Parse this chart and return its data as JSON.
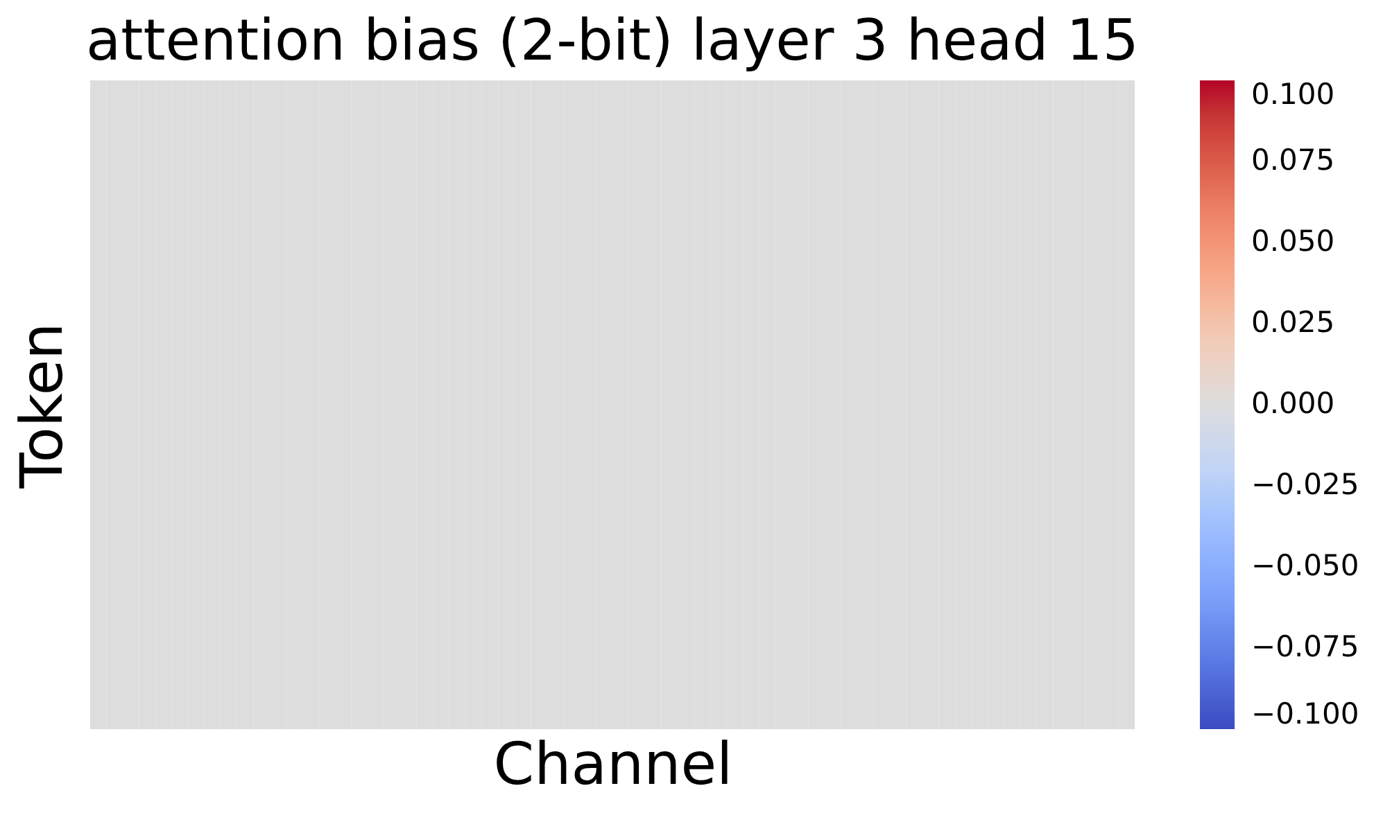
{
  "chart_data": {
    "type": "heatmap",
    "title": "attention bias (2-bit) layer 3 head 15",
    "xlabel": "Channel",
    "ylabel": "Token",
    "categories": [
      null,
      null,
      null,
      null,
      null,
      null,
      null,
      null,
      null,
      null,
      null,
      null,
      null,
      null,
      null,
      null,
      null,
      null,
      null,
      null,
      null,
      null,
      null,
      null,
      null,
      null,
      null,
      null,
      null,
      null,
      null,
      null,
      null,
      null,
      null,
      null,
      null,
      null,
      null,
      null,
      null,
      null,
      null,
      null,
      null,
      null,
      null,
      null,
      null,
      null,
      null,
      null,
      null,
      null,
      null,
      null,
      null,
      null,
      null,
      null,
      null,
      null,
      null,
      null
    ],
    "y_categories": [
      null,
      null,
      null,
      null,
      null,
      null,
      null,
      null
    ],
    "cells": [
      [
        0,
        0,
        0,
        0,
        0,
        0,
        0,
        0,
        0,
        0,
        0,
        0,
        0,
        0,
        0,
        0,
        0,
        0,
        0,
        0,
        0,
        0,
        0,
        0,
        0,
        0,
        0,
        0,
        0,
        0,
        0,
        0,
        0,
        0,
        0,
        0,
        0,
        0,
        0,
        0,
        0,
        0,
        0,
        0,
        0,
        0,
        0,
        0,
        0,
        0,
        0,
        0,
        0,
        0,
        0,
        0,
        0,
        0,
        0,
        0,
        0,
        0,
        0,
        0
      ],
      [
        0,
        0,
        0,
        0,
        0,
        0,
        0,
        0,
        0,
        0,
        0,
        0,
        0,
        0,
        0,
        0,
        0,
        0,
        0,
        0,
        0,
        0,
        0,
        0,
        0,
        0,
        0,
        0,
        0,
        0,
        0,
        0,
        0,
        0,
        0,
        0,
        0,
        0,
        0,
        0,
        0,
        0,
        0,
        0,
        0,
        0,
        0,
        0,
        0,
        0,
        0,
        0,
        0,
        0,
        0,
        0,
        0,
        0,
        0,
        0,
        0,
        0,
        0,
        0
      ],
      [
        0,
        0,
        0,
        0,
        0,
        0,
        0,
        0,
        0,
        0,
        0,
        0,
        0,
        0,
        0,
        0,
        0,
        0,
        0,
        0,
        0,
        0,
        0,
        0,
        0,
        0,
        0,
        0,
        0,
        0,
        0,
        0,
        0,
        0,
        0,
        0,
        0,
        0,
        0,
        0,
        0,
        0,
        0,
        0,
        0,
        0,
        0,
        0,
        0,
        0,
        0,
        0,
        0,
        0,
        0,
        0,
        0,
        0,
        0,
        0,
        0,
        0,
        0,
        0
      ],
      [
        0,
        0,
        0,
        0,
        0,
        0,
        0,
        0,
        0,
        0,
        0,
        0,
        0,
        0,
        0,
        0,
        0,
        0,
        0,
        0,
        0,
        0,
        0,
        0,
        0,
        0,
        0,
        0,
        0,
        0,
        0,
        0,
        0,
        0,
        0,
        0,
        0,
        0,
        0,
        0,
        0,
        0,
        0,
        0,
        0,
        0,
        0,
        0,
        0,
        0,
        0,
        0,
        0,
        0,
        0,
        0,
        0,
        0,
        0,
        0,
        0,
        0,
        0,
        0
      ],
      [
        0,
        0,
        0,
        0,
        0,
        0,
        0,
        0,
        0,
        0,
        0,
        0,
        0,
        0,
        0,
        0,
        0,
        0,
        0,
        0,
        0,
        0,
        0,
        0,
        0,
        0,
        0,
        0,
        0,
        0,
        0,
        0,
        0,
        0,
        0,
        0,
        0,
        0,
        0,
        0,
        0,
        0,
        0,
        0,
        0,
        0,
        0,
        0,
        0,
        0,
        0,
        0,
        0,
        0,
        0,
        0,
        0,
        0,
        0,
        0,
        0,
        0,
        0,
        0
      ],
      [
        0,
        0,
        0,
        0,
        0,
        0,
        0,
        0,
        0,
        0,
        0,
        0,
        0,
        0,
        0,
        0,
        0,
        0,
        0,
        0,
        0,
        0,
        0,
        0,
        0,
        0,
        0,
        0,
        0,
        0,
        0,
        0,
        0,
        0,
        0,
        0,
        0,
        0,
        0,
        0,
        0,
        0,
        0,
        0,
        0,
        0,
        0,
        0,
        0,
        0,
        0,
        0,
        0,
        0,
        0,
        0,
        0,
        0,
        0,
        0,
        0,
        0,
        0,
        0
      ],
      [
        0,
        0,
        0,
        0,
        0,
        0,
        0,
        0,
        0,
        0,
        0,
        0,
        0,
        0,
        0,
        0,
        0,
        0,
        0,
        0,
        0,
        0,
        0,
        0,
        0,
        0,
        0,
        0,
        0,
        0,
        0,
        0,
        0,
        0,
        0,
        0,
        0,
        0,
        0,
        0,
        0,
        0,
        0,
        0,
        0,
        0,
        0,
        0,
        0,
        0,
        0,
        0,
        0,
        0,
        0,
        0,
        0,
        0,
        0,
        0,
        0,
        0,
        0,
        0
      ],
      [
        0,
        0,
        0,
        0,
        0,
        0,
        0,
        0,
        0,
        0,
        0,
        0,
        0,
        0,
        0,
        0,
        0,
        0,
        0,
        0,
        0,
        0,
        0,
        0,
        0,
        0,
        0,
        0,
        0,
        0,
        0,
        0,
        0,
        0,
        0,
        0,
        0,
        0,
        0,
        0,
        0,
        0,
        0,
        0,
        0,
        0,
        0,
        0,
        0,
        0,
        0,
        0,
        0,
        0,
        0,
        0,
        0,
        0,
        0,
        0,
        0,
        0,
        0,
        0
      ]
    ],
    "clim": [
      -0.1,
      0.1
    ],
    "cticks": [
      {
        "value": -0.1,
        "label": "−0.100"
      },
      {
        "value": -0.075,
        "label": "−0.075"
      },
      {
        "value": -0.05,
        "label": "−0.050"
      },
      {
        "value": -0.025,
        "label": "−0.025"
      },
      {
        "value": 0,
        "label": "0.000"
      },
      {
        "value": 0.025,
        "label": "0.025"
      },
      {
        "value": 0.05,
        "label": "0.050"
      },
      {
        "value": 0.075,
        "label": "0.075"
      },
      {
        "value": 0.1,
        "label": "0.100"
      }
    ],
    "tick_labels": false
  }
}
